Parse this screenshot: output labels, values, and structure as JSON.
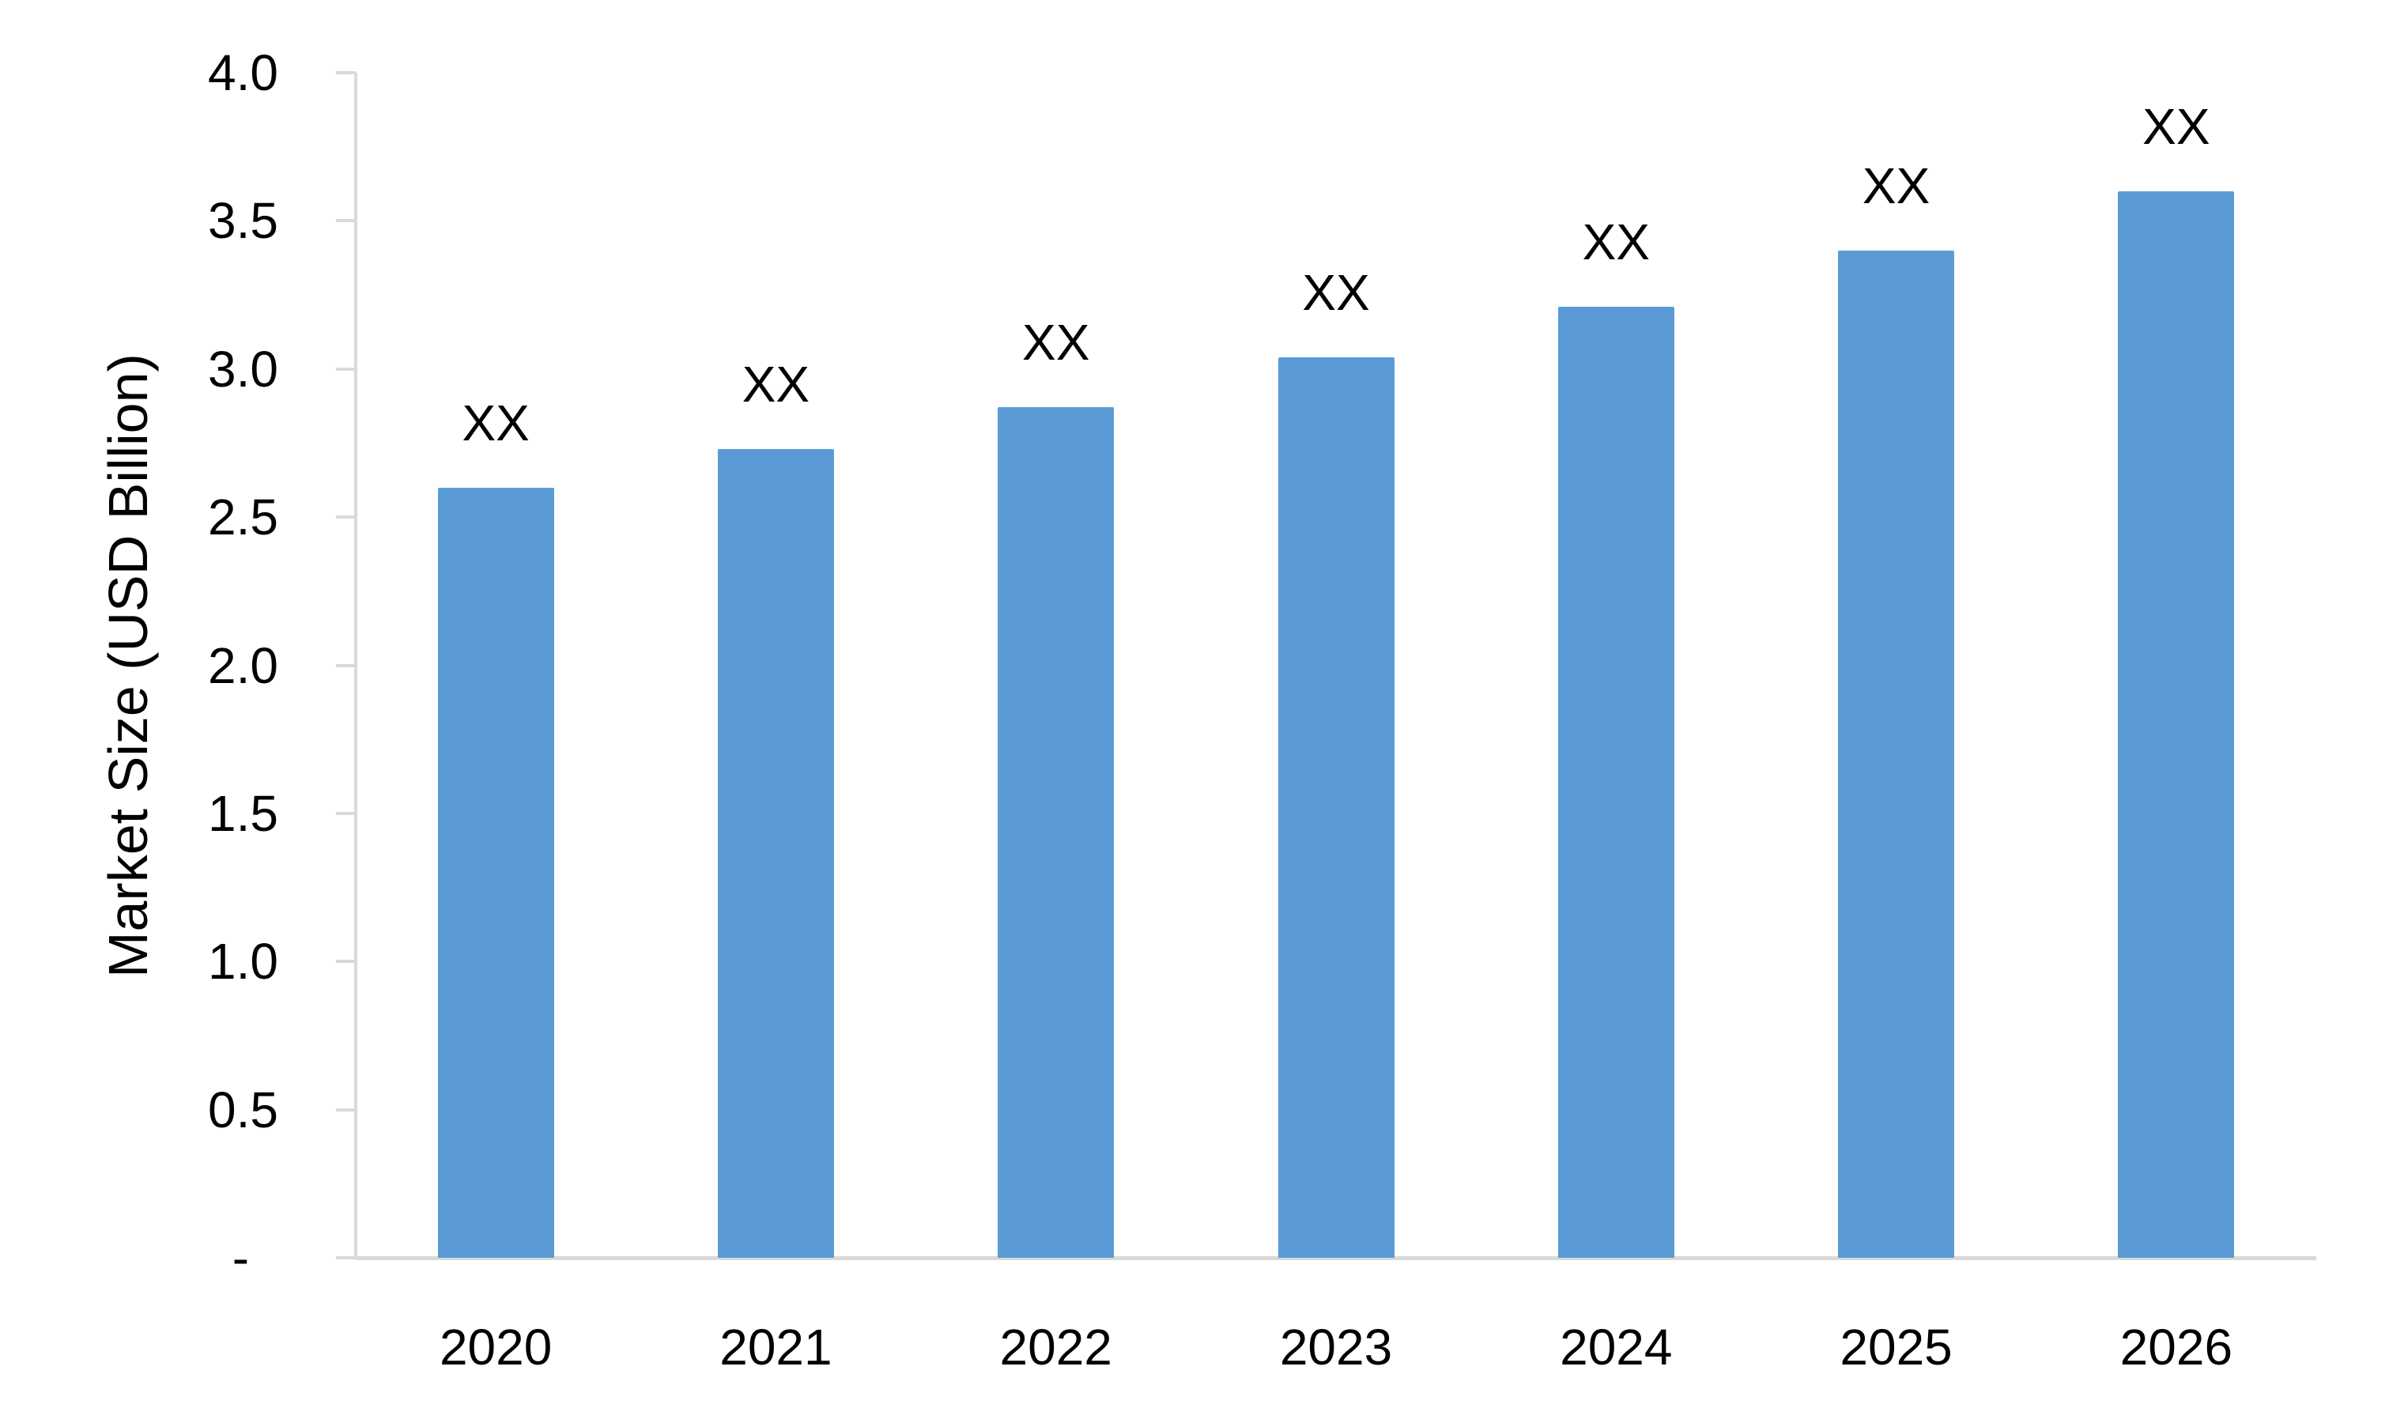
{
  "chart_data": {
    "type": "bar",
    "title": "",
    "xlabel": "",
    "ylabel": "Market Size (USD Billion)",
    "categories": [
      "2020",
      "2021",
      "2022",
      "2023",
      "2024",
      "2025",
      "2026"
    ],
    "series": [
      {
        "name": "Market Size",
        "values": [
          2.6,
          2.73,
          2.87,
          3.04,
          3.21,
          3.4,
          3.6
        ],
        "data_labels": [
          "XX",
          "XX",
          "XX",
          "XX",
          "XX",
          "XX",
          "XX"
        ]
      }
    ],
    "ylim": [
      0,
      4.0
    ],
    "y_ticks": [
      {
        "value": 4.0,
        "label": "4.0"
      },
      {
        "value": 3.5,
        "label": "3.5"
      },
      {
        "value": 3.0,
        "label": "3.0"
      },
      {
        "value": 2.5,
        "label": "2.5"
      },
      {
        "value": 2.0,
        "label": "2.0"
      },
      {
        "value": 1.5,
        "label": "1.5"
      },
      {
        "value": 1.0,
        "label": "1.0"
      },
      {
        "value": 0.5,
        "label": "0.5"
      },
      {
        "value": 0.0,
        "label": "-"
      }
    ],
    "grid": "off",
    "legend": "none",
    "bar_color": "#5B9BD5",
    "axis_color": "#D9D9D9",
    "text_color": "#000000"
  }
}
